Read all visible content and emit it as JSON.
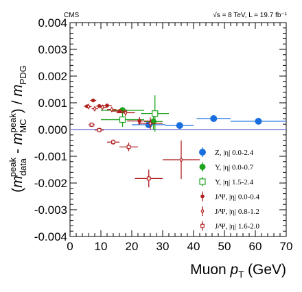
{
  "chart_data": {
    "type": "scatter",
    "experiment_label": "CMS",
    "energy_label": "√s = 8 TeV, L = 19.7 fb⁻¹",
    "xlabel": "Muon p_T (GeV)",
    "ylabel": "(m_data^peak - m_MC^peak) / m_PDG",
    "xlim": [
      0,
      70
    ],
    "ylim": [
      -0.004,
      0.004
    ],
    "x_ticks": [
      "0",
      "10",
      "20",
      "30",
      "40",
      "50",
      "60",
      "70"
    ],
    "y_ticks": [
      "-0.004",
      "-0.003",
      "-0.002",
      "-0.001",
      "0.000",
      "0.001",
      "0.002",
      "0.003",
      "0.004"
    ],
    "reference_line_y": 0.0,
    "legend_position": "bottom-right",
    "series": [
      {
        "name": "Z,      |η| 0.0-2.4",
        "color": "#1a6fdf",
        "marker": "filled-circle",
        "points": [
          {
            "x": 25.5,
            "xerr": 5.5,
            "y": 0.00018,
            "yerr": 5e-05
          },
          {
            "x": 35.5,
            "xerr": 4.5,
            "y": 0.00015,
            "yerr": 4e-05
          },
          {
            "x": 46.5,
            "xerr": 5.5,
            "y": 0.00041,
            "yerr": 4e-05
          },
          {
            "x": 61,
            "xerr": 9,
            "y": 0.00031,
            "yerr": 5e-05
          }
        ]
      },
      {
        "name": "Υ,    |η| 0.0-0.7",
        "color": "#1ea31e",
        "marker": "filled-circle",
        "points": [
          {
            "x": 17,
            "xerr": 7,
            "y": 0.00072,
            "yerr": 0.00012
          },
          {
            "x": 27,
            "xerr": 3,
            "y": 0.0003,
            "yerr": 0.0003
          }
        ]
      },
      {
        "name": "Υ,    |η| 1.5-2.4",
        "color": "#1ea31e",
        "marker": "open-square",
        "points": [
          {
            "x": 17,
            "xerr": 7,
            "y": 0.00037,
            "yerr": 0.00027
          },
          {
            "x": 27.5,
            "xerr": 4.5,
            "y": 0.0006,
            "yerr": 0.00068
          }
        ]
      },
      {
        "name": "J/Ψ, |η| 0.0-0.4",
        "color": "#b01e1e",
        "marker": "filled-circle",
        "points": [
          {
            "x": 5.5,
            "xerr": 1,
            "y": 0.00087,
            "yerr": 5e-05
          },
          {
            "x": 7.5,
            "xerr": 1,
            "y": 0.00109,
            "yerr": 5e-05
          },
          {
            "x": 9.5,
            "xerr": 1,
            "y": 0.00088,
            "yerr": 5e-05
          },
          {
            "x": 12,
            "xerr": 1.5,
            "y": 0.0009,
            "yerr": 5e-05
          },
          {
            "x": 16,
            "xerr": 2.5,
            "y": 0.00069,
            "yerr": 7e-05
          },
          {
            "x": 22.5,
            "xerr": 4,
            "y": 0.00032,
            "yerr": 0.00014
          }
        ]
      },
      {
        "name": "J/Ψ, |η| 0.8-1.2",
        "color": "#b01e1e",
        "marker": "open-diamond",
        "points": [
          {
            "x": 6,
            "xerr": 1,
            "y": 0.00086,
            "yerr": 6e-05
          },
          {
            "x": 8,
            "xerr": 1,
            "y": 0.00078,
            "yerr": 6e-05
          },
          {
            "x": 10.5,
            "xerr": 1.5,
            "y": 0.00083,
            "yerr": 7e-05
          },
          {
            "x": 13.5,
            "xerr": 1.5,
            "y": 0.00075,
            "yerr": 8e-05
          },
          {
            "x": 18,
            "xerr": 3,
            "y": 0.00063,
            "yerr": 0.00012
          },
          {
            "x": 26,
            "xerr": 4,
            "y": 0.00023,
            "yerr": 0.00022
          },
          {
            "x": 36,
            "xerr": 6,
            "y": -0.00113,
            "yerr": 0.00072
          }
        ]
      },
      {
        "name": "J/Ψ, |η| 1.6-2.0",
        "color": "#b01e1e",
        "marker": "open-square",
        "points": [
          {
            "x": 7,
            "xerr": 1,
            "y": 0.00018,
            "yerr": 8e-05
          },
          {
            "x": 9.5,
            "xerr": 1.5,
            "y": -2e-05,
            "yerr": 9e-05
          },
          {
            "x": 14,
            "xerr": 2,
            "y": -0.00047,
            "yerr": 0.0001
          },
          {
            "x": 19,
            "xerr": 3,
            "y": -0.00065,
            "yerr": 0.00016
          },
          {
            "x": 25.5,
            "xerr": 4.5,
            "y": -0.00183,
            "yerr": 0.00033
          }
        ]
      }
    ]
  }
}
